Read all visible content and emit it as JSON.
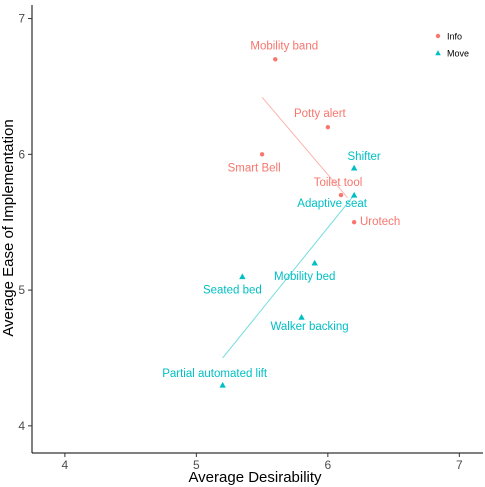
{
  "chart_data": {
    "type": "scatter",
    "xlabel": "Average Desirability",
    "ylabel": "Average Ease of Implementation",
    "xlim": [
      3.75,
      7.18
    ],
    "ylim": [
      3.8,
      7.1
    ],
    "xticks": [
      "4",
      "5",
      "6",
      "7"
    ],
    "yticks": [
      "4",
      "5",
      "6",
      "7"
    ],
    "grid": false,
    "legend_position": "top-right",
    "series": [
      {
        "name": "Info",
        "color": "#F8766D",
        "marker": "circle",
        "points": [
          {
            "label": "Mobility band",
            "x": 5.6,
            "y": 6.7
          },
          {
            "label": "Potty alert",
            "x": 6.0,
            "y": 6.2
          },
          {
            "label": "Smart Bell",
            "x": 5.5,
            "y": 6.0
          },
          {
            "label": "Toilet tool",
            "x": 6.1,
            "y": 5.7
          },
          {
            "label": "Urotech",
            "x": 6.2,
            "y": 5.5
          }
        ],
        "trend": {
          "x": [
            5.5,
            6.15
          ],
          "y": [
            6.42,
            5.68
          ]
        }
      },
      {
        "name": "Move",
        "color": "#00BFC4",
        "marker": "triangle",
        "points": [
          {
            "label": "Shifter",
            "x": 6.2,
            "y": 5.9
          },
          {
            "label": "Adaptive seat",
            "x": 6.2,
            "y": 5.7
          },
          {
            "label": "Mobility bed",
            "x": 5.9,
            "y": 5.2
          },
          {
            "label": "Seated bed",
            "x": 5.35,
            "y": 5.1
          },
          {
            "label": "Walker backing",
            "x": 5.8,
            "y": 4.8
          },
          {
            "label": "Partial automated lift",
            "x": 5.2,
            "y": 4.3
          }
        ],
        "trend": {
          "x": [
            5.2,
            6.2
          ],
          "y": [
            4.5,
            5.7
          ]
        }
      }
    ]
  }
}
